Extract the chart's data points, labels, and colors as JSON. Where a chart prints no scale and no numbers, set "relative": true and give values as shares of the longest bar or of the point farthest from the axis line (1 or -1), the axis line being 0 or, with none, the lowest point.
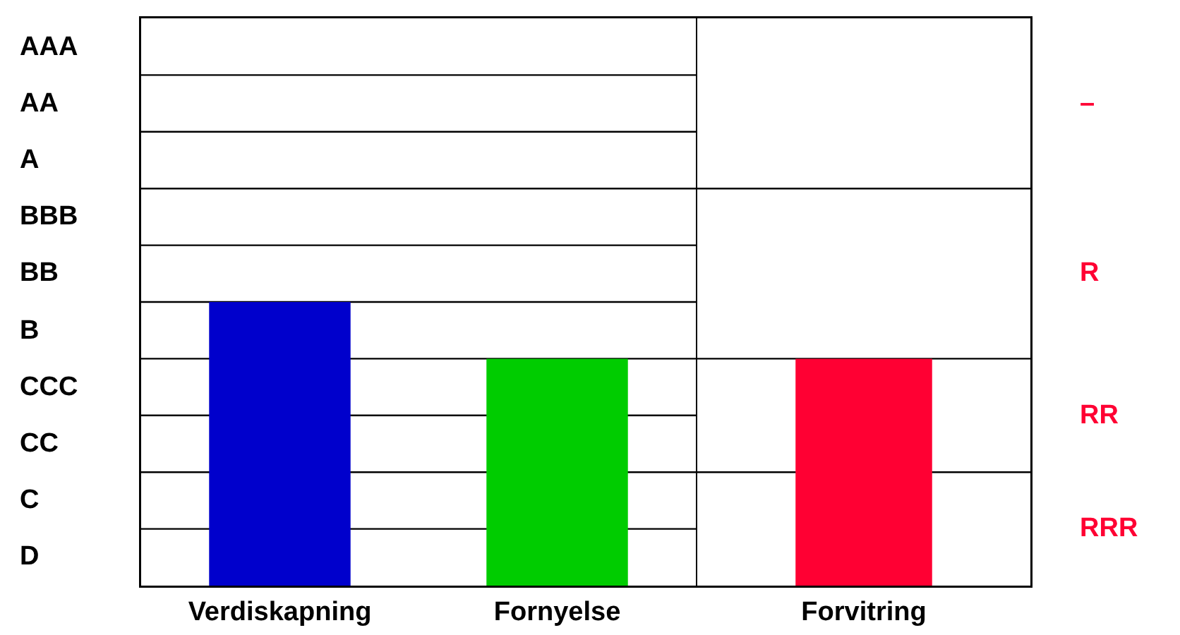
{
  "chart_data": [
    {
      "type": "bar",
      "relative": true,
      "categories": [
        "Verdiskapning",
        "Fornyelse"
      ],
      "series": [
        {
          "colors": [
            "#0000cc",
            "#00cc00"
          ],
          "values": [
            1,
            0.8
          ]
        }
      ],
      "annotations": [
        "AAA",
        "AA",
        "A",
        "BBB",
        "BB",
        "B",
        "CCC",
        "CC",
        "C",
        "D"
      ],
      "ref_lines": [
        {
          "axis": "y",
          "value": 0.2
        },
        {
          "axis": "y",
          "value": 0.4
        },
        {
          "axis": "y",
          "value": 0.6
        },
        {
          "axis": "y",
          "value": 0.8
        },
        {
          "axis": "y",
          "value": 1
        },
        {
          "axis": "y",
          "value": 1.2
        },
        {
          "axis": "y",
          "value": 1.4
        },
        {
          "axis": "y",
          "value": 1.6
        },
        {
          "axis": "y",
          "value": 1.8
        }
      ]
    },
    {
      "type": "bar",
      "relative": true,
      "categories": [
        "Forvitring"
      ],
      "series": [
        {
          "colors": [
            "#ff0033"
          ],
          "values": [
            1
          ]
        }
      ],
      "annotations": [
        "–",
        "R",
        "RR",
        "RRR"
      ],
      "ref_lines": [
        {
          "axis": "y",
          "value": 0.5
        },
        {
          "axis": "y",
          "value": 1
        },
        {
          "axis": "y",
          "value": 1.75
        }
      ]
    }
  ]
}
